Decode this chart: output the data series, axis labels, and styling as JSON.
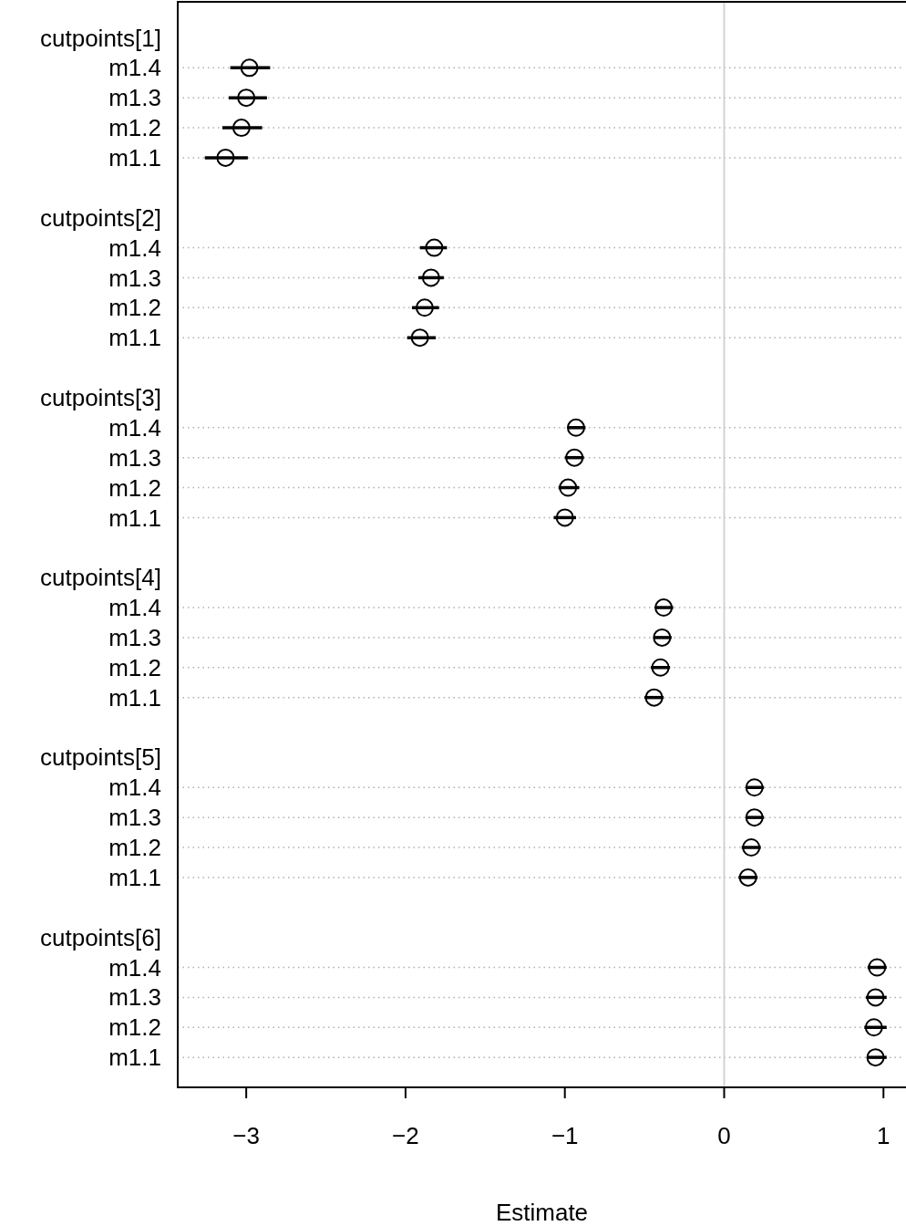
{
  "chart_data": {
    "type": "scatter",
    "orientation": "horizontal",
    "xlabel": "Estimate",
    "categories": [
      "cutpoints[1]",
      "m1.4",
      "m1.3",
      "m1.2",
      "m1.1",
      null,
      "cutpoints[2]",
      "m1.4",
      "m1.3",
      "m1.2",
      "m1.1",
      null,
      "cutpoints[3]",
      "m1.4",
      "m1.3",
      "m1.2",
      "m1.1",
      null,
      "cutpoints[4]",
      "m1.4",
      "m1.3",
      "m1.2",
      "m1.1",
      null,
      "cutpoints[5]",
      "m1.4",
      "m1.3",
      "m1.2",
      "m1.1",
      null,
      "cutpoints[6]",
      "m1.4",
      "m1.3",
      "m1.2",
      "m1.1"
    ],
    "values": [
      null,
      -2.98,
      -3.0,
      -3.03,
      -3.13,
      null,
      null,
      -1.82,
      -1.84,
      -1.88,
      -1.91,
      null,
      null,
      -0.93,
      -0.94,
      -0.98,
      -1.0,
      null,
      null,
      -0.38,
      -0.39,
      -0.4,
      -0.44,
      null,
      null,
      0.19,
      0.19,
      0.17,
      0.15,
      null,
      null,
      0.96,
      0.95,
      0.94,
      0.95
    ],
    "errors": [
      null,
      [
        -3.1,
        -2.85
      ],
      [
        -3.11,
        -2.87
      ],
      [
        -3.15,
        -2.9
      ],
      [
        -3.26,
        -2.99
      ],
      null,
      null,
      [
        -1.91,
        -1.74
      ],
      [
        -1.92,
        -1.76
      ],
      [
        -1.96,
        -1.79
      ],
      [
        -1.99,
        -1.81
      ],
      null,
      null,
      [
        -0.98,
        -0.87
      ],
      [
        -1.0,
        -0.88
      ],
      [
        -1.04,
        -0.91
      ],
      [
        -1.07,
        -0.93
      ],
      null,
      null,
      [
        -0.43,
        -0.32
      ],
      [
        -0.44,
        -0.33
      ],
      [
        -0.46,
        -0.34
      ],
      [
        -0.5,
        -0.38
      ],
      null,
      null,
      [
        0.14,
        0.25
      ],
      [
        0.14,
        0.25
      ],
      [
        0.11,
        0.23
      ],
      [
        0.09,
        0.21
      ],
      null,
      null,
      [
        0.9,
        1.02
      ],
      [
        0.89,
        1.02
      ],
      [
        0.88,
        1.02
      ],
      [
        0.9,
        1.02
      ]
    ],
    "color": "#000000",
    "marker": "circle",
    "grid": "y",
    "xlim": [
      -3.43,
      1.13
    ],
    "xticks": [
      {
        "value": -3,
        "label": "−3"
      },
      {
        "value": -2,
        "label": "−2"
      },
      {
        "value": -1,
        "label": "−1"
      },
      0,
      1
    ],
    "ref_lines": [
      {
        "axis": "x",
        "value": 0,
        "color": "#d3d3d3"
      }
    ]
  }
}
